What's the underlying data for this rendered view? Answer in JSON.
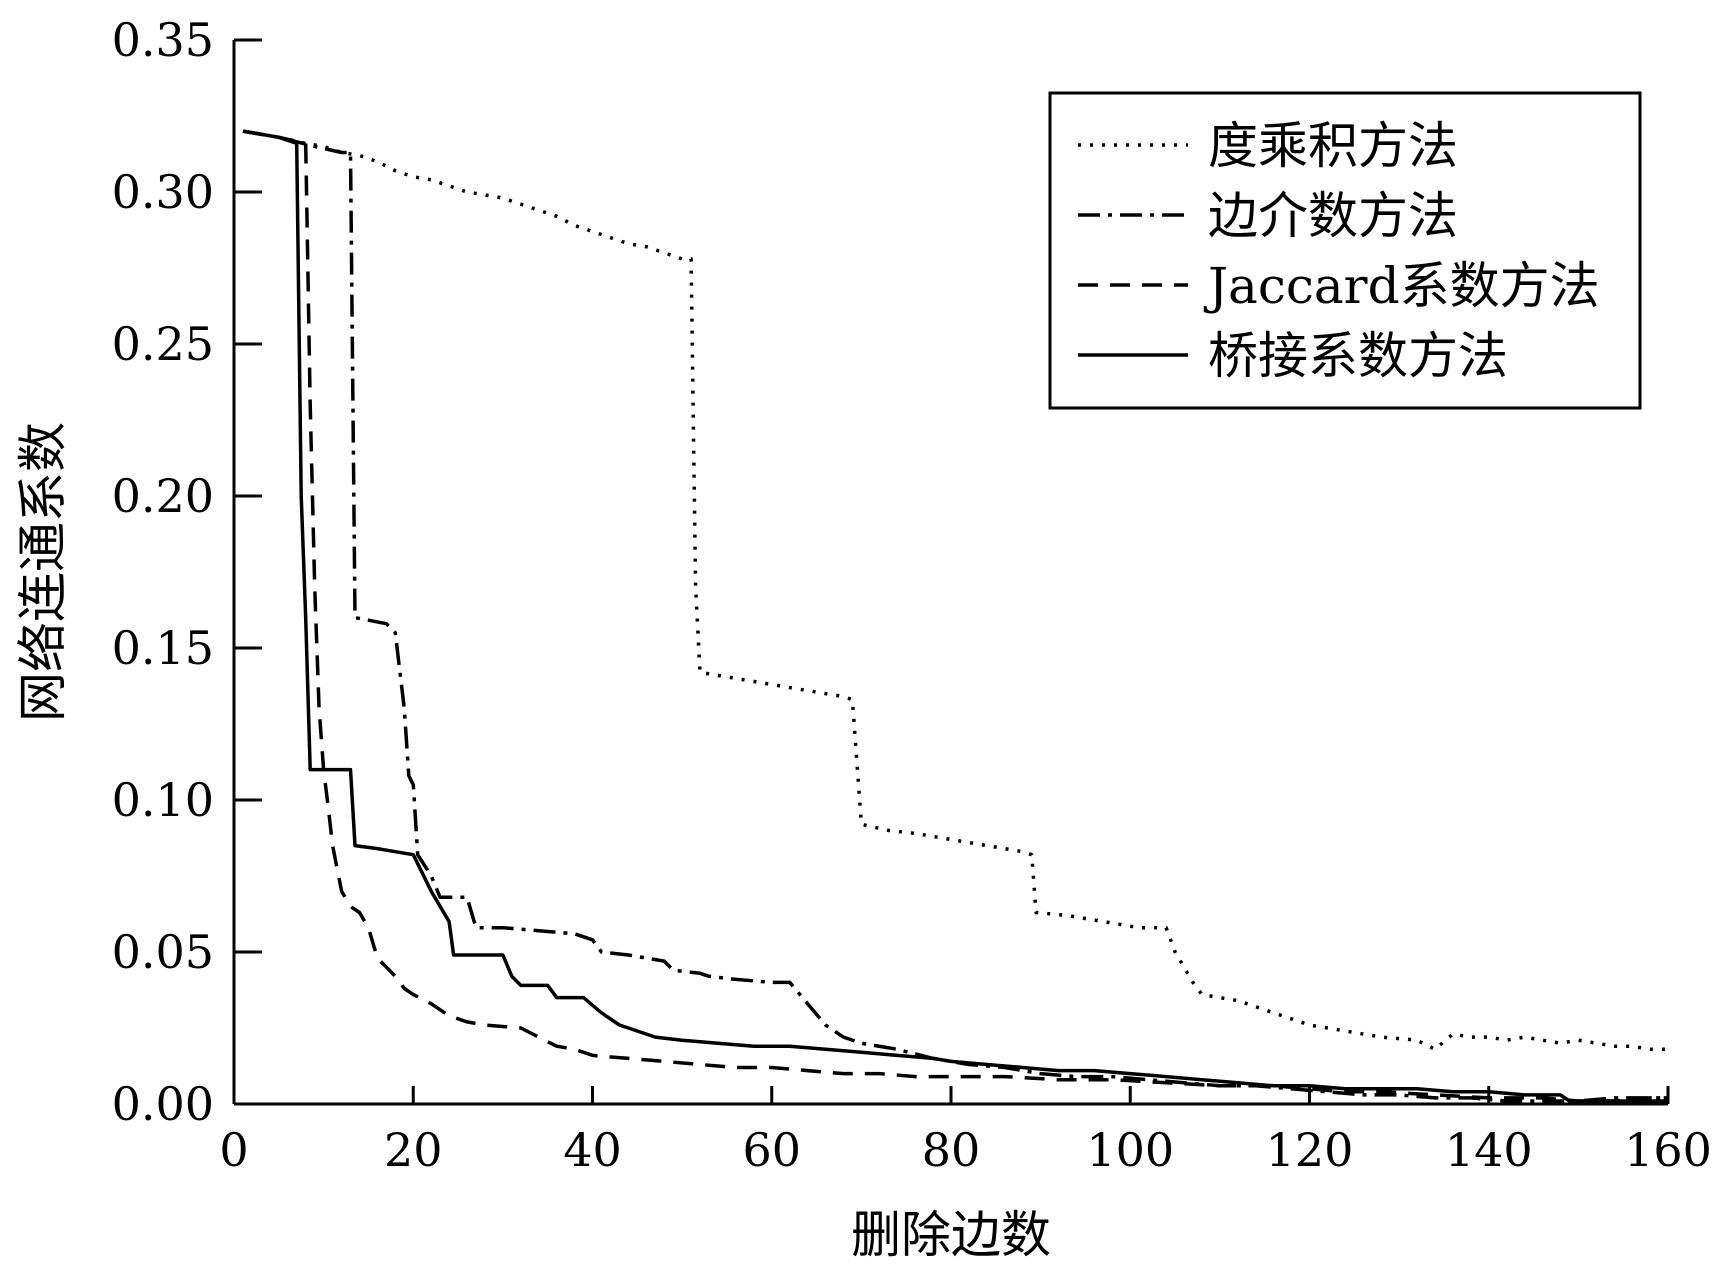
{
  "chart_data": {
    "type": "line",
    "title": "",
    "xlabel": "删除边数",
    "ylabel": "网络连通系数",
    "xlim": [
      0,
      160
    ],
    "ylim": [
      0,
      0.35
    ],
    "xticks": [
      "0",
      "20",
      "40",
      "60",
      "80",
      "100",
      "120",
      "140",
      "160"
    ],
    "yticks": [
      "0.00",
      "0.05",
      "0.10",
      "0.15",
      "0.20",
      "0.25",
      "0.30",
      "0.35"
    ],
    "grid": false,
    "legend_position": "top-right",
    "series": [
      {
        "name": "度乘积方法",
        "line_style": "dotted",
        "color": "#000000",
        "points": [
          [
            1,
            0.32
          ],
          [
            3,
            0.319
          ],
          [
            5,
            0.318
          ],
          [
            8,
            0.316
          ],
          [
            10,
            0.315
          ],
          [
            12,
            0.313
          ],
          [
            14,
            0.312
          ],
          [
            16,
            0.31
          ],
          [
            18,
            0.307
          ],
          [
            20,
            0.305
          ],
          [
            22,
            0.304
          ],
          [
            24,
            0.302
          ],
          [
            26,
            0.3
          ],
          [
            28,
            0.299
          ],
          [
            30,
            0.298
          ],
          [
            32,
            0.296
          ],
          [
            34,
            0.294
          ],
          [
            36,
            0.292
          ],
          [
            38,
            0.289
          ],
          [
            40,
            0.287
          ],
          [
            42,
            0.285
          ],
          [
            44,
            0.283
          ],
          [
            46,
            0.282
          ],
          [
            48,
            0.28
          ],
          [
            50,
            0.278
          ],
          [
            51,
            0.278
          ],
          [
            51.5,
            0.17
          ],
          [
            52,
            0.142
          ],
          [
            56,
            0.14
          ],
          [
            60,
            0.138
          ],
          [
            64,
            0.136
          ],
          [
            68,
            0.134
          ],
          [
            69,
            0.133
          ],
          [
            70,
            0.092
          ],
          [
            73,
            0.09
          ],
          [
            76,
            0.089
          ],
          [
            80,
            0.087
          ],
          [
            84,
            0.085
          ],
          [
            88,
            0.083
          ],
          [
            89,
            0.082
          ],
          [
            89.5,
            0.063
          ],
          [
            93,
            0.062
          ],
          [
            97,
            0.06
          ],
          [
            101,
            0.058
          ],
          [
            104,
            0.058
          ],
          [
            105,
            0.05
          ],
          [
            106,
            0.045
          ],
          [
            107,
            0.04
          ],
          [
            108,
            0.036
          ],
          [
            112,
            0.034
          ],
          [
            116,
            0.03
          ],
          [
            120,
            0.026
          ],
          [
            124,
            0.024
          ],
          [
            128,
            0.022
          ],
          [
            132,
            0.021
          ],
          [
            134,
            0.018
          ],
          [
            136,
            0.023
          ],
          [
            138,
            0.022
          ],
          [
            140,
            0.022
          ],
          [
            142,
            0.021
          ],
          [
            144,
            0.022
          ],
          [
            146,
            0.021
          ],
          [
            148,
            0.02
          ],
          [
            150,
            0.021
          ],
          [
            152,
            0.02
          ],
          [
            154,
            0.019
          ],
          [
            156,
            0.019
          ],
          [
            158,
            0.018
          ],
          [
            160,
            0.018
          ]
        ]
      },
      {
        "name": "边介数方法",
        "line_style": "dashdot",
        "color": "#000000",
        "points": [
          [
            1,
            0.32
          ],
          [
            5,
            0.318
          ],
          [
            9,
            0.315
          ],
          [
            12,
            0.313
          ],
          [
            13,
            0.313
          ],
          [
            13.5,
            0.16
          ],
          [
            17,
            0.158
          ],
          [
            18,
            0.155
          ],
          [
            19,
            0.13
          ],
          [
            19.5,
            0.108
          ],
          [
            20,
            0.105
          ],
          [
            20.5,
            0.082
          ],
          [
            22,
            0.075
          ],
          [
            23,
            0.068
          ],
          [
            26,
            0.068
          ],
          [
            27,
            0.058
          ],
          [
            30,
            0.058
          ],
          [
            34,
            0.057
          ],
          [
            38,
            0.056
          ],
          [
            40,
            0.054
          ],
          [
            41,
            0.05
          ],
          [
            44,
            0.049
          ],
          [
            48,
            0.047
          ],
          [
            49,
            0.044
          ],
          [
            52,
            0.043
          ],
          [
            53,
            0.042
          ],
          [
            56,
            0.041
          ],
          [
            60,
            0.04
          ],
          [
            62,
            0.04
          ],
          [
            64,
            0.033
          ],
          [
            66,
            0.026
          ],
          [
            68,
            0.022
          ],
          [
            70,
            0.02
          ],
          [
            74,
            0.018
          ],
          [
            78,
            0.015
          ],
          [
            82,
            0.013
          ],
          [
            86,
            0.012
          ],
          [
            90,
            0.01
          ],
          [
            94,
            0.009
          ],
          [
            98,
            0.009
          ],
          [
            102,
            0.008
          ],
          [
            106,
            0.007
          ],
          [
            110,
            0.006
          ],
          [
            114,
            0.006
          ],
          [
            118,
            0.005
          ],
          [
            122,
            0.004
          ],
          [
            126,
            0.003
          ],
          [
            130,
            0.003
          ],
          [
            134,
            0.002
          ],
          [
            138,
            0.002
          ],
          [
            142,
            0.001
          ],
          [
            146,
            0.001
          ],
          [
            150,
            0.001
          ],
          [
            154,
            0.002
          ],
          [
            158,
            0.002
          ],
          [
            160,
            0.002
          ]
        ]
      },
      {
        "name": "Jaccard系数方法",
        "line_style": "dashed",
        "color": "#000000",
        "points": [
          [
            1,
            0.32
          ],
          [
            5,
            0.318
          ],
          [
            8,
            0.316
          ],
          [
            8.5,
            0.23
          ],
          [
            9,
            0.17
          ],
          [
            9.5,
            0.13
          ],
          [
            10,
            0.11
          ],
          [
            10.5,
            0.098
          ],
          [
            11,
            0.085
          ],
          [
            12,
            0.07
          ],
          [
            13,
            0.065
          ],
          [
            14,
            0.063
          ],
          [
            15,
            0.058
          ],
          [
            16,
            0.048
          ],
          [
            17,
            0.045
          ],
          [
            18,
            0.042
          ],
          [
            19,
            0.038
          ],
          [
            20,
            0.036
          ],
          [
            22,
            0.033
          ],
          [
            24,
            0.029
          ],
          [
            26,
            0.027
          ],
          [
            28,
            0.026
          ],
          [
            32,
            0.025
          ],
          [
            34,
            0.022
          ],
          [
            36,
            0.019
          ],
          [
            38,
            0.018
          ],
          [
            40,
            0.016
          ],
          [
            44,
            0.015
          ],
          [
            48,
            0.014
          ],
          [
            52,
            0.013
          ],
          [
            56,
            0.012
          ],
          [
            60,
            0.012
          ],
          [
            64,
            0.011
          ],
          [
            68,
            0.01
          ],
          [
            72,
            0.01
          ],
          [
            76,
            0.009
          ],
          [
            80,
            0.009
          ],
          [
            86,
            0.009
          ],
          [
            92,
            0.008
          ],
          [
            98,
            0.008
          ],
          [
            104,
            0.007
          ],
          [
            110,
            0.006
          ],
          [
            116,
            0.006
          ],
          [
            120,
            0.005
          ],
          [
            124,
            0.004
          ],
          [
            128,
            0.004
          ],
          [
            134,
            0.003
          ],
          [
            140,
            0.002
          ],
          [
            146,
            0.002
          ],
          [
            150,
            0.001
          ],
          [
            154,
            0.001
          ],
          [
            158,
            0.002
          ],
          [
            160,
            0.002
          ]
        ]
      },
      {
        "name": "桥接系数方法",
        "line_style": "solid",
        "color": "#000000",
        "points": [
          [
            1,
            0.32
          ],
          [
            3,
            0.319
          ],
          [
            5,
            0.318
          ],
          [
            6,
            0.317
          ],
          [
            7,
            0.316
          ],
          [
            7.5,
            0.2
          ],
          [
            8,
            0.16
          ],
          [
            8.5,
            0.11
          ],
          [
            13,
            0.11
          ],
          [
            13.5,
            0.085
          ],
          [
            16,
            0.084
          ],
          [
            18,
            0.083
          ],
          [
            20,
            0.082
          ],
          [
            22,
            0.07
          ],
          [
            24,
            0.06
          ],
          [
            24.5,
            0.049
          ],
          [
            30,
            0.049
          ],
          [
            31,
            0.042
          ],
          [
            32,
            0.039
          ],
          [
            35,
            0.039
          ],
          [
            36,
            0.035
          ],
          [
            39,
            0.035
          ],
          [
            41,
            0.03
          ],
          [
            43,
            0.026
          ],
          [
            45,
            0.024
          ],
          [
            47,
            0.022
          ],
          [
            50,
            0.021
          ],
          [
            54,
            0.02
          ],
          [
            58,
            0.019
          ],
          [
            62,
            0.019
          ],
          [
            66,
            0.018
          ],
          [
            70,
            0.017
          ],
          [
            74,
            0.016
          ],
          [
            78,
            0.015
          ],
          [
            80,
            0.014
          ],
          [
            84,
            0.013
          ],
          [
            88,
            0.012
          ],
          [
            92,
            0.011
          ],
          [
            96,
            0.011
          ],
          [
            100,
            0.01
          ],
          [
            104,
            0.009
          ],
          [
            108,
            0.008
          ],
          [
            112,
            0.007
          ],
          [
            116,
            0.006
          ],
          [
            120,
            0.006
          ],
          [
            124,
            0.005
          ],
          [
            128,
            0.005
          ],
          [
            132,
            0.005
          ],
          [
            136,
            0.004
          ],
          [
            140,
            0.004
          ],
          [
            144,
            0.003
          ],
          [
            148,
            0.003
          ],
          [
            149,
            0.001
          ],
          [
            154,
            0.001
          ],
          [
            158,
            0.001
          ],
          [
            160,
            0.001
          ]
        ]
      }
    ]
  }
}
